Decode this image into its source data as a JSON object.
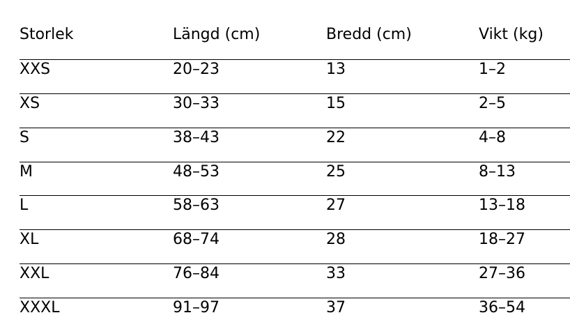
{
  "table": {
    "header": [
      "Storlek",
      "Längd (cm)",
      "Bredd (cm)",
      "Vikt (kg)"
    ],
    "rows": [
      [
        "XXS",
        "20–23",
        "13",
        "1–2"
      ],
      [
        "XS",
        "30–33",
        "15",
        "2–5"
      ],
      [
        "S",
        "38–43",
        "22",
        "4–8"
      ],
      [
        "M",
        "48–53",
        "25",
        "8–13"
      ],
      [
        "L",
        "58–63",
        "27",
        "13–18"
      ],
      [
        "XL",
        "68–74",
        "28",
        "18–27"
      ],
      [
        "XXL",
        "76–84",
        "33",
        "27–36"
      ],
      [
        "XXXL",
        "91–97",
        "37",
        "36–54"
      ]
    ]
  }
}
